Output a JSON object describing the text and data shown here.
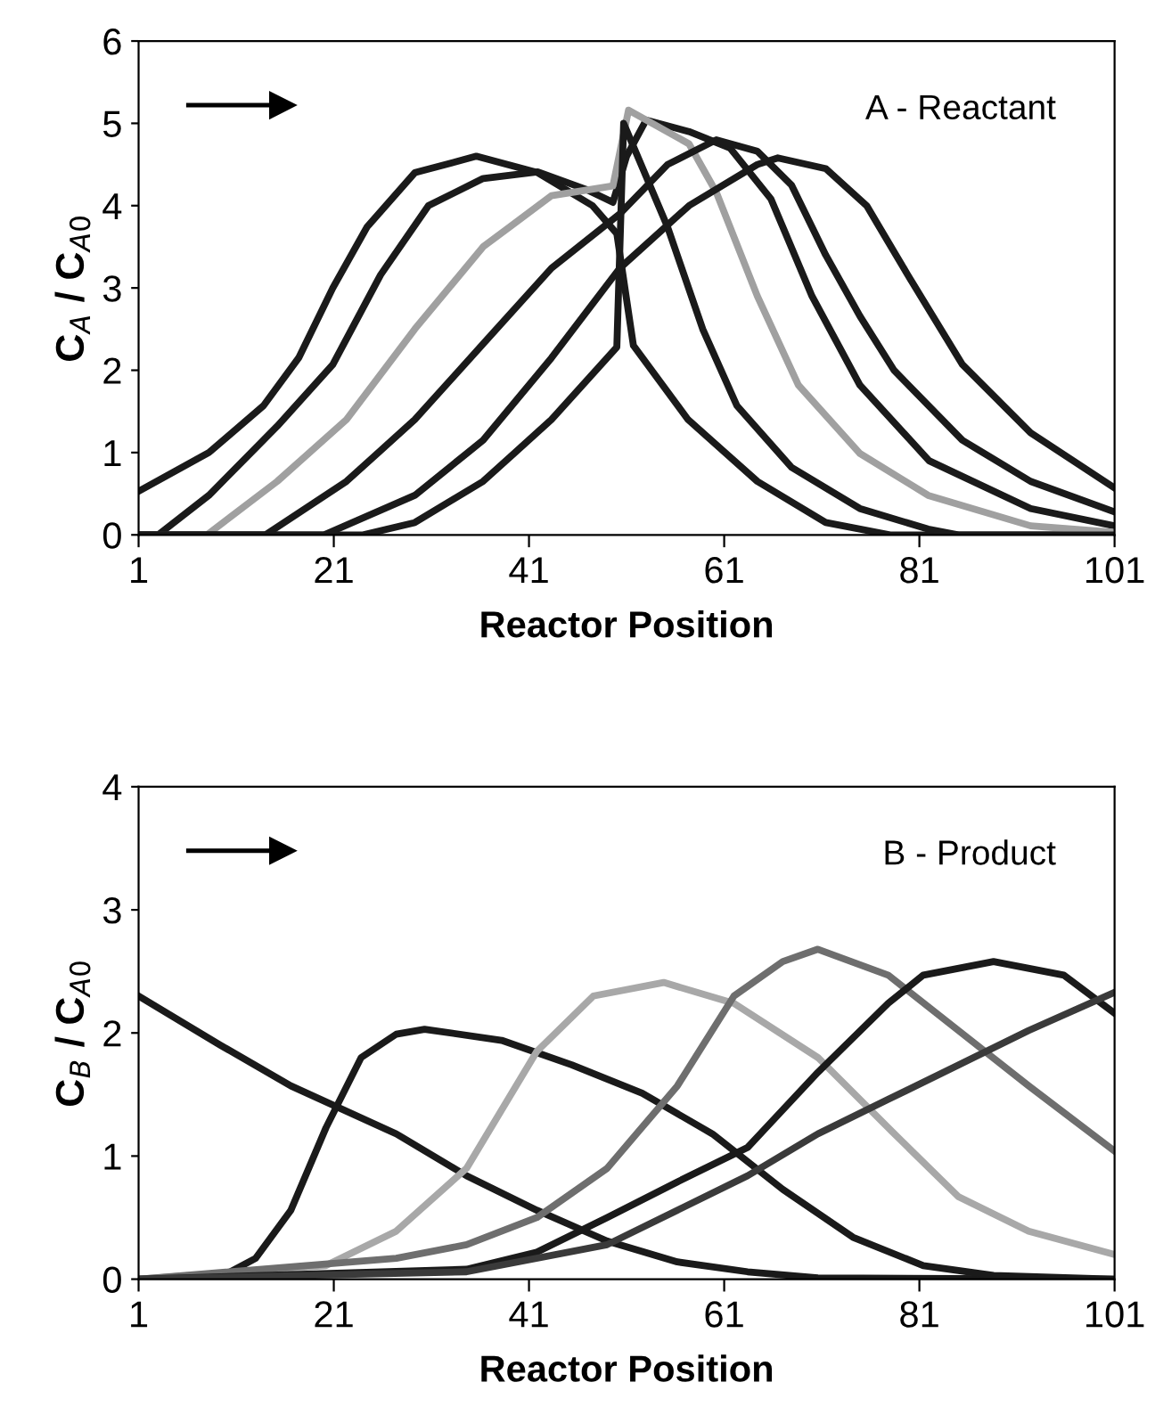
{
  "chart_data": [
    {
      "type": "line",
      "xlabel": "Reactor Position",
      "ylabel": "C$_{A}$ / C$_{A0}$",
      "annotations": [
        "A - Reactant"
      ],
      "xlim": [
        1,
        101
      ],
      "ylim": [
        0,
        6
      ],
      "xticks": [
        1,
        21,
        41,
        61,
        81,
        101
      ],
      "yticks": [
        0,
        1,
        2,
        3,
        4,
        5,
        6
      ],
      "marker": "none",
      "line_style": "solid",
      "grid": false,
      "series": [
        {
          "color": "#1a1a1a",
          "x": [
            1,
            8.2,
            13.8,
            17.4,
            20.9,
            24.4,
            29.3,
            35.6,
            41.9,
            47.5,
            50,
            51.7,
            57.3,
            64.4,
            71.4,
            78,
            101
          ],
          "values": [
            0.53,
            1.0,
            1.57,
            2.15,
            3.0,
            3.74,
            4.4,
            4.6,
            4.4,
            4.0,
            3.66,
            2.3,
            1.4,
            0.65,
            0.15,
            0,
            0
          ]
        },
        {
          "color": "#1a1a1a",
          "x": [
            1,
            3,
            8.2,
            15.2,
            20.9,
            25.8,
            30.7,
            36.3,
            41.9,
            46.8,
            49.6,
            51,
            53,
            57.4,
            61.6,
            65.8,
            70,
            74.9,
            82,
            92.4,
            101
          ],
          "values": [
            0,
            0,
            0.48,
            1.32,
            2.07,
            3.16,
            4.0,
            4.33,
            4.41,
            4.2,
            4.04,
            4.6,
            5.04,
            4.9,
            4.7,
            4.08,
            2.9,
            1.82,
            0.9,
            0.32,
            0.11
          ]
        },
        {
          "color": "#a0a0a0",
          "x": [
            1,
            8,
            15.2,
            22.3,
            29.3,
            36.3,
            43.3,
            49.6,
            51.2,
            57.4,
            60.2,
            64.4,
            68.6,
            74.9,
            81.9,
            92.4,
            101
          ],
          "values": [
            0,
            0,
            0.65,
            1.4,
            2.5,
            3.5,
            4.12,
            4.24,
            5.16,
            4.75,
            4.16,
            2.9,
            1.82,
            0.99,
            0.48,
            0.11,
            0.03
          ]
        },
        {
          "color": "#1a1a1a",
          "x": [
            1,
            14,
            22.3,
            29.3,
            36.3,
            43.3,
            50.3,
            55.2,
            60.2,
            64.4,
            67.9,
            71.4,
            74.9,
            78.4,
            85.4,
            92.4,
            101
          ],
          "values": [
            0,
            0,
            0.65,
            1.4,
            2.32,
            3.24,
            3.9,
            4.5,
            4.8,
            4.66,
            4.25,
            3.4,
            2.66,
            2.0,
            1.15,
            0.65,
            0.28
          ]
        },
        {
          "color": "#1a1a1a",
          "x": [
            1,
            20,
            29.3,
            36.3,
            43.3,
            50.3,
            57.4,
            64.4,
            66.5,
            71.4,
            75.6,
            79.8,
            85.4,
            92.4,
            101
          ],
          "values": [
            0,
            0,
            0.48,
            1.15,
            2.15,
            3.24,
            4.0,
            4.5,
            4.58,
            4.45,
            4.0,
            3.16,
            2.07,
            1.24,
            0.57
          ]
        },
        {
          "color": "#1a1a1a",
          "x": [
            1,
            24,
            29.3,
            36.3,
            43.3,
            50,
            50.7,
            55.2,
            58.8,
            62.3,
            67.9,
            74.9,
            81.9,
            85,
            101
          ],
          "values": [
            0,
            0,
            0.15,
            0.65,
            1.4,
            2.28,
            5.0,
            3.74,
            2.5,
            1.57,
            0.82,
            0.32,
            0.07,
            0,
            0
          ]
        }
      ]
    },
    {
      "type": "line",
      "xlabel": "Reactor Position",
      "ylabel": "C$_{B}$ / C$_{A0}$",
      "annotations": [
        "B - Product"
      ],
      "xlim": [
        1,
        101
      ],
      "ylim": [
        0,
        4
      ],
      "xticks": [
        1,
        21,
        41,
        61,
        81,
        101
      ],
      "yticks": [
        0,
        1,
        2,
        3,
        4
      ],
      "marker": "none",
      "line_style": "solid",
      "grid": false,
      "series": [
        {
          "color": "#1a1a1a",
          "x": [
            1,
            9.4,
            16.6,
            27.4,
            34.6,
            41.8,
            49,
            56.2,
            63.4,
            70.6,
            101
          ],
          "values": [
            2.3,
            1.9,
            1.57,
            1.18,
            0.84,
            0.56,
            0.31,
            0.14,
            0.06,
            0.01,
            0
          ]
        },
        {
          "color": "#1a1a1a",
          "x": [
            1,
            9,
            13,
            16.6,
            20.2,
            23.8,
            27.4,
            30.3,
            38.2,
            45.4,
            52.6,
            59.8,
            67,
            74.2,
            81.4,
            88.6,
            101
          ],
          "values": [
            0,
            0,
            0.17,
            0.56,
            1.23,
            1.8,
            1.99,
            2.03,
            1.94,
            1.74,
            1.51,
            1.18,
            0.73,
            0.34,
            0.11,
            0.03,
            0
          ]
        },
        {
          "color": "#a8a8a8",
          "x": [
            1,
            20.2,
            27.4,
            34.6,
            41.8,
            47.6,
            54.8,
            62,
            70.6,
            77.8,
            85,
            92.2,
            101
          ],
          "values": [
            0,
            0.11,
            0.39,
            0.9,
            1.85,
            2.3,
            2.41,
            2.24,
            1.8,
            1.23,
            0.67,
            0.39,
            0.2
          ]
        },
        {
          "color": "#6e6e6e",
          "x": [
            1,
            27.4,
            34.6,
            41.8,
            49,
            56.2,
            62,
            67,
            70.6,
            77.8,
            85,
            92.2,
            101
          ],
          "values": [
            0,
            0.17,
            0.28,
            0.5,
            0.9,
            1.57,
            2.3,
            2.58,
            2.68,
            2.47,
            2.02,
            1.57,
            1.04
          ]
        },
        {
          "color": "#1a1a1a",
          "x": [
            1,
            34.6,
            41.8,
            49,
            56.2,
            63.4,
            70.6,
            77.8,
            81.4,
            88.6,
            95.8,
            101
          ],
          "values": [
            0,
            0.08,
            0.22,
            0.5,
            0.79,
            1.07,
            1.68,
            2.24,
            2.47,
            2.58,
            2.47,
            2.16
          ]
        },
        {
          "color": "#3a3a3a",
          "x": [
            1,
            34.6,
            49,
            56.2,
            63.4,
            70.6,
            77.8,
            85,
            92.2,
            101
          ],
          "values": [
            0,
            0.06,
            0.28,
            0.56,
            0.84,
            1.18,
            1.46,
            1.74,
            2.02,
            2.33
          ]
        }
      ]
    }
  ]
}
